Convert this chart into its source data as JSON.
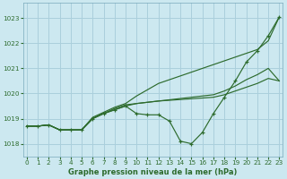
{
  "title": "Graphe pression niveau de la mer (hPa)",
  "bg_color": "#cce8f0",
  "grid_color": "#aacfdc",
  "line_color": "#2d6b2d",
  "xlim": [
    -0.3,
    23.3
  ],
  "ylim": [
    1017.5,
    1023.6
  ],
  "yticks": [
    1018,
    1019,
    1020,
    1021,
    1022,
    1023
  ],
  "xticks": [
    0,
    1,
    2,
    3,
    4,
    5,
    6,
    7,
    8,
    9,
    10,
    11,
    12,
    13,
    14,
    15,
    16,
    17,
    18,
    19,
    20,
    21,
    22,
    23
  ],
  "series_plain": [
    [
      1018.7,
      1018.7,
      1018.75,
      1018.55,
      1018.55,
      1018.55,
      1019.05,
      1019.25,
      1019.45,
      1019.6,
      1019.9,
      1020.15,
      1020.4,
      1020.55,
      1020.7,
      1020.85,
      1021.0,
      1021.15,
      1021.3,
      1021.45,
      1021.6,
      1021.75,
      1022.1,
      1023.05
    ],
    [
      1018.7,
      1018.7,
      1018.75,
      1018.55,
      1018.55,
      1018.55,
      1019.0,
      1019.2,
      1019.4,
      1019.55,
      1019.6,
      1019.65,
      1019.7,
      1019.75,
      1019.8,
      1019.85,
      1019.9,
      1019.95,
      1020.1,
      1020.3,
      1020.55,
      1020.75,
      1021.0,
      1020.5
    ],
    [
      1018.7,
      1018.7,
      1018.75,
      1018.55,
      1018.55,
      1018.55,
      1019.0,
      1019.2,
      1019.35,
      1019.5,
      1019.6,
      1019.65,
      1019.7,
      1019.73,
      1019.76,
      1019.79,
      1019.82,
      1019.85,
      1019.95,
      1020.1,
      1020.25,
      1020.4,
      1020.6,
      1020.5
    ]
  ],
  "series_marker": [
    [
      1018.7,
      1018.7,
      1018.75,
      1018.55,
      1018.55,
      1018.55,
      1019.0,
      1019.2,
      1019.35,
      1019.5,
      1019.2,
      1019.15,
      1019.15,
      1018.9,
      1018.1,
      1018.0,
      1018.45,
      1019.2,
      1019.85,
      1020.5,
      1021.25,
      1021.7,
      1022.3,
      1023.05
    ]
  ]
}
